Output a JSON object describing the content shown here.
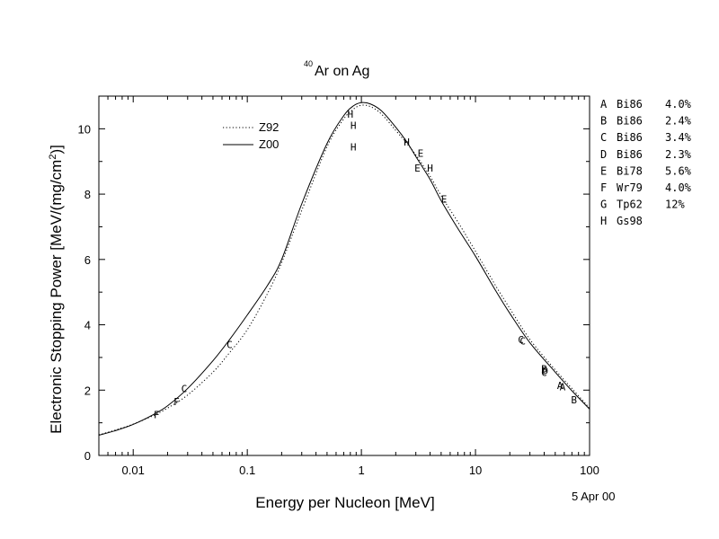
{
  "chart_data": {
    "type": "line",
    "title_sup": "40",
    "title_main": "Ar on Ag",
    "xlabel": "Energy per Nucleon [MeV]",
    "ylabel_main": "Electronic Stopping Power [MeV/(mg/cm",
    "ylabel_sup": "2",
    "ylabel_end": ")]",
    "date_stamp": "5 Apr 00",
    "x_scale": "log",
    "xlim": [
      0.005,
      100
    ],
    "ylim": [
      0,
      11
    ],
    "x_ticks": [
      {
        "value": 0.01,
        "label": "0.01"
      },
      {
        "value": 0.1,
        "label": "0.1"
      },
      {
        "value": 1,
        "label": "1"
      },
      {
        "value": 10,
        "label": "10"
      },
      {
        "value": 100,
        "label": "100"
      }
    ],
    "y_ticks": [
      {
        "value": 0,
        "label": "0"
      },
      {
        "value": 2,
        "label": "2"
      },
      {
        "value": 4,
        "label": "4"
      },
      {
        "value": 6,
        "label": "6"
      },
      {
        "value": 8,
        "label": "8"
      },
      {
        "value": 10,
        "label": "10"
      }
    ],
    "grid": false,
    "legend_position": "top-left",
    "series": [
      {
        "name": "Z92",
        "style": "dotted",
        "x": [
          0.005,
          0.007,
          0.01,
          0.015,
          0.02,
          0.03,
          0.05,
          0.07,
          0.1,
          0.15,
          0.2,
          0.3,
          0.5,
          0.7,
          0.85,
          1.0,
          1.2,
          1.5,
          2.0,
          2.5,
          3.0,
          4.0,
          5.0,
          7.0,
          10,
          15,
          20,
          30,
          50,
          70,
          100
        ],
        "y": [
          0.63,
          0.78,
          0.96,
          1.22,
          1.45,
          1.85,
          2.55,
          3.15,
          3.85,
          4.95,
          5.9,
          7.5,
          9.45,
          10.3,
          10.6,
          10.72,
          10.68,
          10.45,
          9.95,
          9.55,
          9.2,
          8.55,
          7.95,
          7.15,
          6.25,
          5.2,
          4.5,
          3.55,
          2.62,
          2.05,
          1.45
        ]
      },
      {
        "name": "Z00",
        "style": "solid",
        "x": [
          0.005,
          0.007,
          0.01,
          0.015,
          0.02,
          0.03,
          0.05,
          0.07,
          0.1,
          0.15,
          0.2,
          0.3,
          0.5,
          0.7,
          0.85,
          1.0,
          1.2,
          1.5,
          2.0,
          2.5,
          3.0,
          4.0,
          5.0,
          7.0,
          10,
          15,
          20,
          30,
          50,
          70,
          100
        ],
        "y": [
          0.62,
          0.76,
          0.95,
          1.25,
          1.52,
          2.05,
          2.9,
          3.55,
          4.3,
          5.2,
          6.0,
          7.7,
          9.55,
          10.4,
          10.7,
          10.8,
          10.76,
          10.55,
          10.05,
          9.6,
          9.15,
          8.45,
          7.8,
          6.95,
          6.1,
          5.05,
          4.35,
          3.45,
          2.55,
          1.98,
          1.42
        ]
      }
    ],
    "data_markers": [
      {
        "label": "H",
        "x": 0.8,
        "y": 10.45
      },
      {
        "label": "H",
        "x": 0.85,
        "y": 10.1
      },
      {
        "label": "H",
        "x": 0.85,
        "y": 9.45
      },
      {
        "label": "H",
        "x": 2.5,
        "y": 9.6
      },
      {
        "label": "H",
        "x": 4.0,
        "y": 8.8
      },
      {
        "label": "E",
        "x": 3.3,
        "y": 9.25
      },
      {
        "label": "E",
        "x": 3.1,
        "y": 8.8
      },
      {
        "label": "E",
        "x": 5.3,
        "y": 7.85
      },
      {
        "label": "F",
        "x": 0.016,
        "y": 1.25
      },
      {
        "label": "F",
        "x": 0.024,
        "y": 1.65
      },
      {
        "label": "C",
        "x": 0.028,
        "y": 2.05
      },
      {
        "label": "C",
        "x": 0.07,
        "y": 3.4
      },
      {
        "label": "C",
        "x": 25,
        "y": 3.55
      },
      {
        "label": "C",
        "x": 26,
        "y": 3.5
      },
      {
        "label": "B",
        "x": 40,
        "y": 2.65
      },
      {
        "label": "D",
        "x": 41,
        "y": 2.6
      },
      {
        "label": "C",
        "x": 40,
        "y": 2.55
      },
      {
        "label": "A",
        "x": 55,
        "y": 2.15
      },
      {
        "label": "A",
        "x": 58,
        "y": 2.1
      },
      {
        "label": "B",
        "x": 73,
        "y": 1.7
      }
    ],
    "reference_key": [
      {
        "letter": "A",
        "source": "Bi86",
        "error": "4.0%"
      },
      {
        "letter": "B",
        "source": "Bi86",
        "error": "2.4%"
      },
      {
        "letter": "C",
        "source": "Bi86",
        "error": "3.4%"
      },
      {
        "letter": "D",
        "source": "Bi86",
        "error": "2.3%"
      },
      {
        "letter": "E",
        "source": "Bi78",
        "error": "5.6%"
      },
      {
        "letter": "F",
        "source": "Wr79",
        "error": "4.0%"
      },
      {
        "letter": "G",
        "source": "Tp62",
        "error": "12%"
      },
      {
        "letter": "H",
        "source": "Gs98",
        "error": ""
      }
    ]
  }
}
